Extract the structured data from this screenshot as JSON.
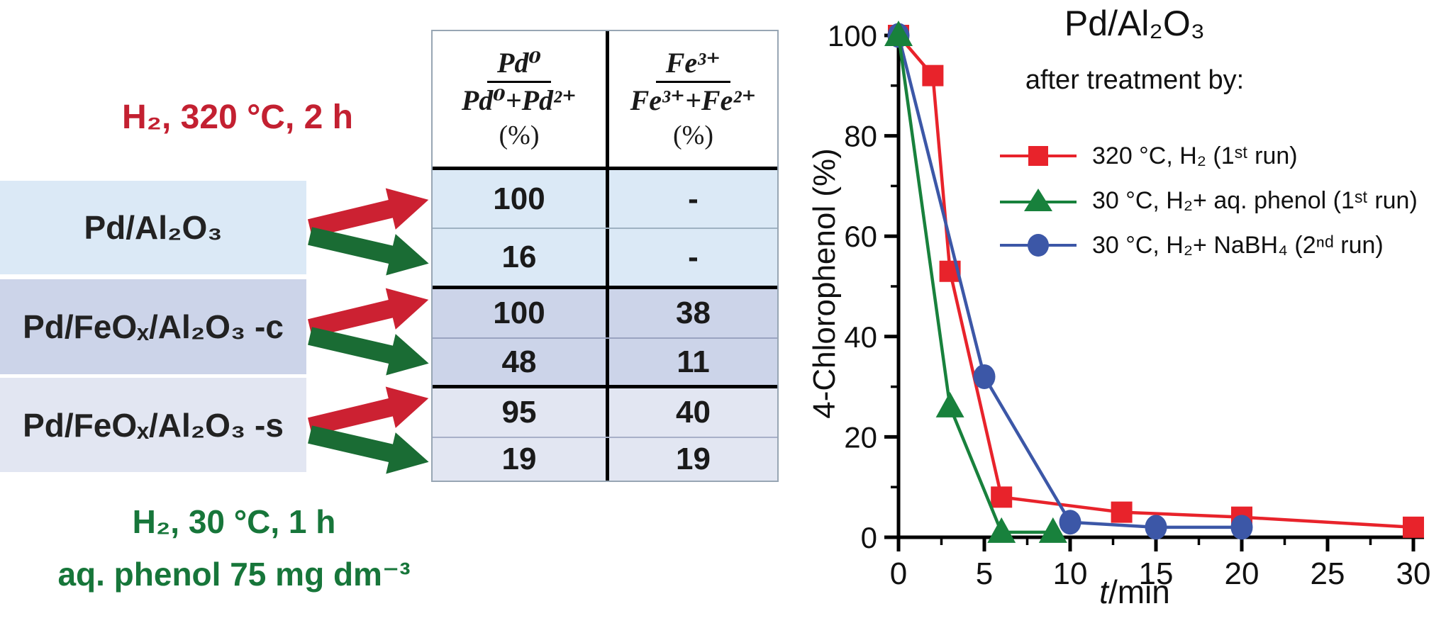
{
  "colors": {
    "text-red": "#c32031",
    "text-green": "#17763a",
    "arrow-red": "#cc2132",
    "arrow-green": "#1a6c34",
    "row-bg-1": "#dbe9f6",
    "row-bg-2": "#ccd4e9",
    "row-bg-3": "#e2e6f2",
    "series-red": "#e8232b",
    "series-green": "#18813c",
    "series-blue": "#3c57a7"
  },
  "left_panel": {
    "treatment_red": "H₂, 320 °C, 2 h",
    "treatment_green_line1": "H₂, 30 °C, 1 h",
    "treatment_green_line2": "aq. phenol 75 mg dm⁻³",
    "catalysts": [
      "Pd/Al₂O₃",
      "Pd/FeOₓ/Al₂O₃ -c",
      "Pd/FeOₓ/Al₂O₃ -s"
    ]
  },
  "table": {
    "col1_header": {
      "numerator": "Pd⁰",
      "denominator": "Pd⁰+Pd²⁺",
      "unit": "(%)"
    },
    "col2_header": {
      "numerator": "Fe³⁺",
      "denominator": "Fe³⁺+Fe²⁺",
      "unit": "(%)"
    },
    "rows": [
      {
        "c0": "100",
        "c1": "-"
      },
      {
        "c0": "16",
        "c1": "-"
      },
      {
        "c0": "100",
        "c1": "38"
      },
      {
        "c0": "48",
        "c1": "11"
      },
      {
        "c0": "95",
        "c1": "40"
      },
      {
        "c0": "19",
        "c1": "19"
      }
    ]
  },
  "chart_data": {
    "type": "line",
    "title": "Pd/Al₂O₃",
    "subtitle": "after treatment by:",
    "xlabel": "t/min",
    "xlabel_italic": "t",
    "xlabel_rest": "/min",
    "ylabel": "4-Chlorophenol (%)",
    "xlim": [
      0,
      31
    ],
    "ylim": [
      0,
      100
    ],
    "x_ticks": [
      0,
      5,
      10,
      15,
      20,
      25,
      30
    ],
    "y_ticks": [
      0,
      20,
      40,
      60,
      80,
      100
    ],
    "x_minor_step": 2.5,
    "y_minor_step": 10,
    "grid": false,
    "legend_position": "top-right-inside",
    "series": [
      {
        "name": "320 °C, H₂ (1ˢᵗ run)",
        "color": "#e8232b",
        "marker": "square",
        "points": [
          [
            0,
            100
          ],
          [
            2,
            92
          ],
          [
            3,
            53
          ],
          [
            6,
            8
          ],
          [
            13,
            5
          ],
          [
            20,
            4
          ],
          [
            30,
            2
          ]
        ]
      },
      {
        "name": "30 °C, H₂+ aq. phenol (1ˢᵗ run)",
        "color": "#18813c",
        "marker": "triangle",
        "points": [
          [
            0,
            100
          ],
          [
            3,
            26
          ],
          [
            6,
            1
          ],
          [
            9,
            1
          ]
        ]
      },
      {
        "name": "30 °C, H₂+ NaBH₄ (2ⁿᵈ run)",
        "color": "#3c57a7",
        "marker": "circle",
        "points": [
          [
            0,
            100
          ],
          [
            5,
            32
          ],
          [
            10,
            3
          ],
          [
            15,
            2
          ],
          [
            20,
            2
          ]
        ]
      }
    ]
  }
}
